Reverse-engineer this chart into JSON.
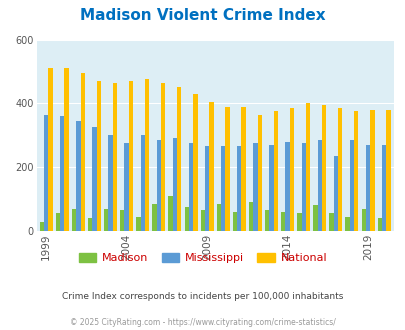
{
  "title": "Madison Violent Crime Index",
  "years": [
    1999,
    2000,
    2001,
    2002,
    2003,
    2004,
    2005,
    2006,
    2007,
    2008,
    2009,
    2010,
    2011,
    2012,
    2013,
    2014,
    2015,
    2016,
    2017,
    2018,
    2019,
    2020
  ],
  "madison": [
    28,
    55,
    70,
    40,
    70,
    65,
    45,
    85,
    110,
    75,
    65,
    85,
    60,
    90,
    65,
    60,
    55,
    80,
    55,
    45,
    70,
    40
  ],
  "mississippi": [
    365,
    360,
    345,
    325,
    300,
    275,
    300,
    285,
    290,
    275,
    265,
    265,
    265,
    275,
    270,
    280,
    275,
    285,
    235,
    285,
    270,
    270
  ],
  "national": [
    510,
    510,
    495,
    470,
    465,
    470,
    475,
    465,
    450,
    430,
    405,
    390,
    390,
    365,
    375,
    385,
    400,
    395,
    385,
    375,
    380,
    380
  ],
  "madison_color": "#7dc142",
  "mississippi_color": "#5b9bd5",
  "national_color": "#ffc000",
  "plot_bg": "#ddeef5",
  "title_color": "#0070c0",
  "ylabel_max": 600,
  "yticks": [
    0,
    200,
    400,
    600
  ],
  "tick_years": [
    1999,
    2004,
    2009,
    2014,
    2019
  ],
  "subtitle": "Crime Index corresponds to incidents per 100,000 inhabitants",
  "footer": "© 2025 CityRating.com - https://www.cityrating.com/crime-statistics/",
  "subtitle_color": "#444444",
  "footer_color": "#999999",
  "legend_labels": [
    "Madison",
    "Mississippi",
    "National"
  ],
  "legend_text_color": "#cc0000"
}
